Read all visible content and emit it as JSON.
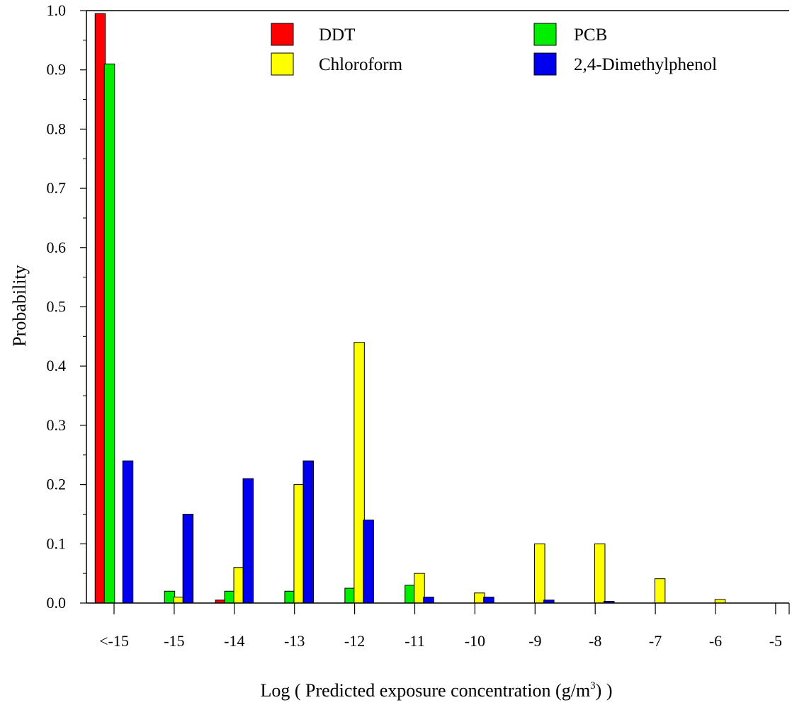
{
  "chart_data": {
    "type": "bar",
    "categories": [
      "<-15",
      "-15",
      "-14",
      "-13",
      "-12",
      "-11",
      "-10",
      "-9",
      "-8",
      "-7",
      "-6",
      "-5"
    ],
    "series": [
      {
        "name": "DDT",
        "color": "#ff0000",
        "values": [
          0.995,
          0,
          0.005,
          0,
          0,
          0,
          0,
          0,
          0,
          0,
          0,
          0
        ]
      },
      {
        "name": "PCB",
        "color": "#00ee00",
        "values": [
          0.91,
          0.02,
          0.02,
          0.02,
          0.025,
          0.03,
          0,
          0,
          0,
          0,
          0,
          0
        ]
      },
      {
        "name": "Chloroform",
        "color": "#ffff00",
        "values": [
          0,
          0.01,
          0.06,
          0.2,
          0.44,
          0.05,
          0.017,
          0.1,
          0.1,
          0.041,
          0.006,
          0
        ]
      },
      {
        "name": "2,4-Dimethylphenol",
        "color": "#0000ee",
        "values": [
          0.24,
          0.15,
          0.21,
          0.24,
          0.14,
          0.01,
          0.01,
          0.005,
          0.003,
          0,
          0,
          0
        ]
      }
    ],
    "xlabel_main": "Log ( Predicted exposure concentration (g/m",
    "xlabel_sup": "3",
    "xlabel_end": ") )",
    "ylabel": "Probability",
    "ylim": [
      0,
      1.0
    ],
    "yticks": [
      "0.0",
      "0.1",
      "0.2",
      "0.3",
      "0.4",
      "0.5",
      "0.6",
      "0.7",
      "0.8",
      "0.9",
      "1.0"
    ],
    "legend_position": "top",
    "grid": false
  }
}
